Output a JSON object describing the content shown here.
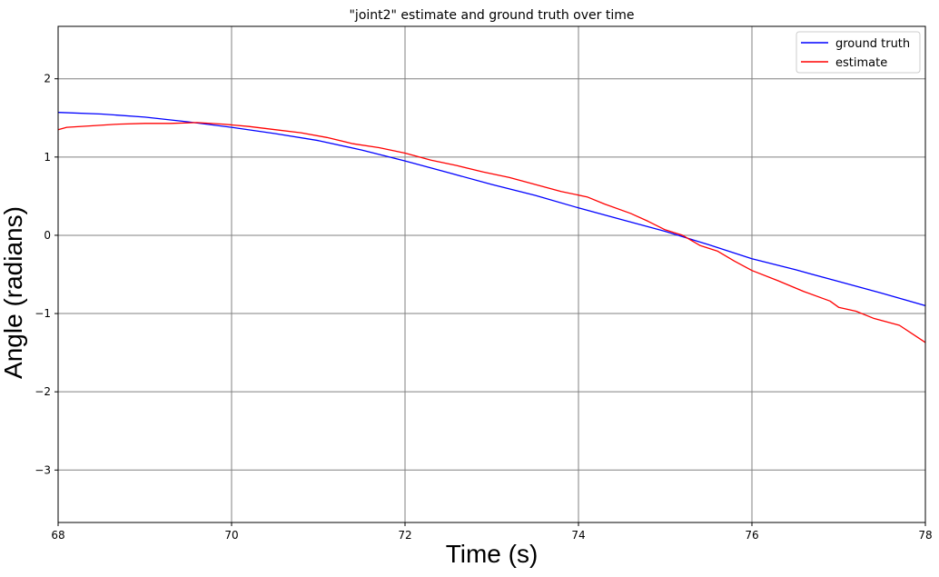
{
  "chart_data": {
    "type": "line",
    "title": "\"joint2\" estimate and ground truth over time",
    "xlabel": "Time (s)",
    "ylabel": "Angle (radians)",
    "xlim": [
      68,
      78
    ],
    "ylim": [
      -3.67,
      2.67
    ],
    "xticks": [
      68,
      70,
      72,
      74,
      76,
      78
    ],
    "yticks": [
      -3,
      -2,
      -1,
      0,
      1,
      2
    ],
    "ytick_labels": [
      "−3",
      "−2",
      "−1",
      "0",
      "1",
      "2"
    ],
    "grid": true,
    "legend_position": "top-right",
    "series": [
      {
        "name": "ground truth",
        "color": "#0000ff",
        "x": [
          68.0,
          68.5,
          69.0,
          69.5,
          70.0,
          70.5,
          71.0,
          71.5,
          72.0,
          72.5,
          73.0,
          73.5,
          74.0,
          74.5,
          75.0,
          75.5,
          76.0,
          76.5,
          77.0,
          77.5,
          78.0
        ],
        "y": [
          1.57,
          1.55,
          1.51,
          1.45,
          1.38,
          1.3,
          1.21,
          1.09,
          0.95,
          0.8,
          0.65,
          0.51,
          0.35,
          0.2,
          0.05,
          -0.12,
          -0.3,
          -0.44,
          -0.59,
          -0.74,
          -0.9
        ]
      },
      {
        "name": "estimate",
        "color": "#ff0000",
        "x": [
          68.0,
          68.1,
          68.4,
          68.7,
          69.0,
          69.3,
          69.6,
          69.9,
          70.2,
          70.5,
          70.8,
          71.1,
          71.4,
          71.7,
          72.0,
          72.3,
          72.6,
          72.9,
          73.2,
          73.5,
          73.8,
          74.1,
          74.3,
          74.6,
          74.8,
          75.0,
          75.2,
          75.4,
          75.6,
          75.8,
          76.0,
          76.3,
          76.6,
          76.9,
          77.0,
          77.2,
          77.4,
          77.7,
          78.0
        ],
        "y": [
          1.35,
          1.38,
          1.4,
          1.42,
          1.43,
          1.43,
          1.44,
          1.42,
          1.39,
          1.35,
          1.31,
          1.25,
          1.17,
          1.12,
          1.05,
          0.96,
          0.89,
          0.81,
          0.74,
          0.65,
          0.56,
          0.49,
          0.4,
          0.28,
          0.18,
          0.07,
          0.0,
          -0.13,
          -0.2,
          -0.33,
          -0.45,
          -0.58,
          -0.72,
          -0.84,
          -0.92,
          -0.97,
          -1.06,
          -1.15,
          -1.37
        ]
      }
    ]
  }
}
